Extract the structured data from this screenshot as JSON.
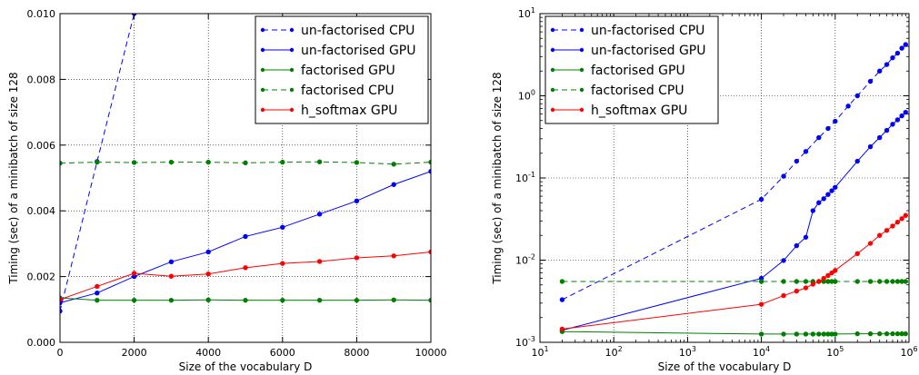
{
  "chart_data": [
    {
      "type": "line",
      "xlabel": "Size of the vocabulary D",
      "ylabel": "Timing (sec) of a minibatch of size 128",
      "xlim": [
        0,
        10000
      ],
      "ylim": [
        0,
        0.01
      ],
      "xscale": "linear",
      "yscale": "linear",
      "grid": true,
      "legend": "top-right",
      "xticks": [
        "0",
        "2000",
        "4000",
        "6000",
        "8000",
        "10000"
      ],
      "yticks": [
        "0.000",
        "0.002",
        "0.004",
        "0.006",
        "0.008",
        "0.010"
      ],
      "series": [
        {
          "name": "un-factorised CPU",
          "color": "#0000ff",
          "dash": true,
          "x": [
            0,
            1000,
            2000
          ],
          "y": [
            0.00095,
            0.0055,
            0.01
          ]
        },
        {
          "name": "un-factorised GPU",
          "color": "#0000ff",
          "dash": false,
          "x": [
            0,
            1000,
            2000,
            3000,
            4000,
            5000,
            6000,
            7000,
            8000,
            9000,
            10000
          ],
          "y": [
            0.0012,
            0.0015,
            0.002,
            0.00245,
            0.00275,
            0.00322,
            0.0035,
            0.0039,
            0.0043,
            0.0048,
            0.0052
          ]
        },
        {
          "name": "factorised GPU",
          "color": "#008000",
          "dash": false,
          "x": [
            0,
            1000,
            2000,
            3000,
            4000,
            5000,
            6000,
            7000,
            8000,
            9000,
            10000
          ],
          "y": [
            0.00135,
            0.00128,
            0.00128,
            0.00128,
            0.00129,
            0.00128,
            0.00128,
            0.00128,
            0.00128,
            0.00129,
            0.00128
          ]
        },
        {
          "name": "factorised CPU",
          "color": "#008000",
          "dash": true,
          "x": [
            0,
            1000,
            2000,
            3000,
            4000,
            5000,
            6000,
            7000,
            8000,
            9000,
            10000
          ],
          "y": [
            0.00545,
            0.00548,
            0.00547,
            0.00548,
            0.00548,
            0.00546,
            0.00548,
            0.00549,
            0.00547,
            0.00542,
            0.00548
          ]
        },
        {
          "name": "h_softmax GPU",
          "color": "#ff0000",
          "dash": false,
          "x": [
            0,
            1000,
            2000,
            3000,
            4000,
            5000,
            6000,
            7000,
            8000,
            9000,
            10000
          ],
          "y": [
            0.0013,
            0.0017,
            0.0021,
            0.00201,
            0.00208,
            0.00227,
            0.0024,
            0.00246,
            0.00257,
            0.00263,
            0.00275
          ]
        }
      ]
    },
    {
      "type": "line",
      "xlabel": "Size of the vocabulary D",
      "ylabel": "Timing (sec) of a minibatch of size 128",
      "xlim": [
        10,
        1000000
      ],
      "ylim": [
        0.001,
        10
      ],
      "xscale": "log",
      "yscale": "log",
      "grid": true,
      "legend": "top-left",
      "xticks": [
        {
          "base": "10",
          "exp": "1"
        },
        {
          "base": "10",
          "exp": "2"
        },
        {
          "base": "10",
          "exp": "3"
        },
        {
          "base": "10",
          "exp": "4"
        },
        {
          "base": "10",
          "exp": "5"
        },
        {
          "base": "10",
          "exp": "6"
        }
      ],
      "yticks": [
        {
          "base": "10",
          "exp": "-3"
        },
        {
          "base": "10",
          "exp": "-2"
        },
        {
          "base": "10",
          "exp": "-1"
        },
        {
          "base": "10",
          "exp": "0"
        },
        {
          "base": "10",
          "exp": "1"
        }
      ],
      "series": [
        {
          "name": "un-factorised CPU",
          "color": "#0000ff",
          "dash": true,
          "x": [
            20,
            10000,
            20000,
            30000,
            40000,
            60000,
            80000,
            100000,
            150000,
            200000,
            300000,
            400000,
            500000,
            600000,
            700000,
            800000,
            900000
          ],
          "y": [
            0.0033,
            0.055,
            0.105,
            0.16,
            0.21,
            0.31,
            0.4,
            0.49,
            0.75,
            1.0,
            1.5,
            2.0,
            2.4,
            2.9,
            3.3,
            3.8,
            4.2
          ]
        },
        {
          "name": "un-factorised GPU",
          "color": "#0000ff",
          "dash": false,
          "x": [
            20,
            10000,
            20000,
            30000,
            40000,
            50000,
            60000,
            70000,
            80000,
            90000,
            100000,
            200000,
            300000,
            400000,
            500000,
            600000,
            700000,
            800000,
            900000
          ],
          "y": [
            0.0014,
            0.006,
            0.0099,
            0.015,
            0.019,
            0.04,
            0.05,
            0.056,
            0.063,
            0.07,
            0.077,
            0.16,
            0.24,
            0.31,
            0.38,
            0.45,
            0.51,
            0.57,
            0.63
          ]
        },
        {
          "name": "factorised GPU",
          "color": "#008000",
          "dash": false,
          "x": [
            20,
            10000,
            20000,
            30000,
            40000,
            50000,
            60000,
            70000,
            80000,
            90000,
            100000,
            200000,
            300000,
            400000,
            500000,
            600000,
            700000,
            800000,
            900000
          ],
          "y": [
            0.00135,
            0.00126,
            0.00126,
            0.00126,
            0.00126,
            0.00126,
            0.00126,
            0.00126,
            0.00126,
            0.00126,
            0.00126,
            0.00127,
            0.00127,
            0.00127,
            0.00127,
            0.00127,
            0.00127,
            0.00127,
            0.00127
          ]
        },
        {
          "name": "factorised CPU",
          "color": "#008000",
          "dash": true,
          "x": [
            20,
            10000,
            20000,
            30000,
            40000,
            50000,
            60000,
            70000,
            80000,
            90000,
            100000,
            200000,
            300000,
            400000,
            500000,
            600000,
            700000,
            800000,
            900000
          ],
          "y": [
            0.0055,
            0.0055,
            0.0055,
            0.0055,
            0.0055,
            0.0055,
            0.0055,
            0.0055,
            0.0055,
            0.0055,
            0.0055,
            0.0055,
            0.0055,
            0.0055,
            0.0055,
            0.0055,
            0.0055,
            0.0055,
            0.0055
          ]
        },
        {
          "name": "h_softmax GPU",
          "color": "#ff0000",
          "dash": false,
          "x": [
            20,
            10000,
            20000,
            30000,
            40000,
            50000,
            60000,
            70000,
            80000,
            90000,
            100000,
            200000,
            300000,
            400000,
            500000,
            600000,
            700000,
            800000,
            900000
          ],
          "y": [
            0.00145,
            0.0029,
            0.0037,
            0.0042,
            0.0046,
            0.0051,
            0.0055,
            0.006,
            0.0065,
            0.007,
            0.0075,
            0.012,
            0.016,
            0.02,
            0.023,
            0.026,
            0.029,
            0.032,
            0.035
          ]
        }
      ]
    }
  ]
}
